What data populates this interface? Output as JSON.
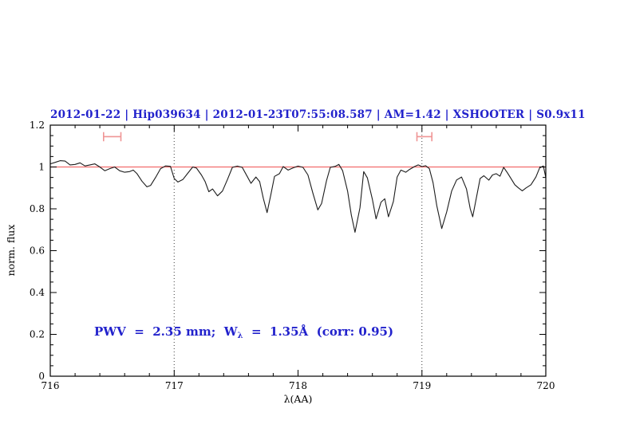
{
  "plot": {
    "title": "2012-01-22 | Hip039634 | 2012-01-23T07:55:08.587 | AM=1.42 | XSHOOTER | S0.9x11",
    "annotation": {
      "prefix": "PWV  =  2.35 mm;  W",
      "sub": "λ",
      "suffix": "  =  1.35Å  (corr: 0.95)"
    },
    "colors": {
      "title_blue": "#2222cc",
      "annotation_blue": "#2222cc",
      "spectrum_black": "#1c1c1c",
      "continuum_red": "#f26b6b",
      "marker_salmon": "#ef9595",
      "guide_gray": "#3a3a3a",
      "frame_black": "#000000",
      "background": "#ffffff"
    }
  },
  "chart_data": {
    "type": "line",
    "title": "2012-01-22 | Hip039634 | 2012-01-23T07:55:08.587 | AM=1.42 | XSHOOTER | S0.9x11",
    "xlabel": "λ(AA)",
    "ylabel": "norm. flux",
    "xlim": [
      716,
      720
    ],
    "ylim": [
      0,
      1.2
    ],
    "grid": false,
    "x_ticks": {
      "major": [
        716,
        717,
        718,
        719,
        720
      ],
      "labels": [
        "716",
        "717",
        "718",
        "719",
        "720"
      ],
      "minor_step": 0.2
    },
    "y_ticks": {
      "major": [
        0,
        0.2,
        0.4,
        0.6,
        0.8,
        1,
        1.2
      ],
      "labels": [
        "0",
        "0.2",
        "0.4",
        "0.6",
        "0.8",
        "1",
        "1.2"
      ],
      "minor_step": 0.05
    },
    "vertical_dotted_guides_x": [
      717,
      719
    ],
    "continuum_line_y": 1.0,
    "range_markers": [
      {
        "x1": 716.43,
        "x2": 716.57,
        "y": 1.145,
        "cap_half": 0.022
      },
      {
        "x1": 718.96,
        "x2": 719.08,
        "y": 1.145,
        "cap_half": 0.022
      }
    ],
    "series": [
      {
        "name": "normalized_spectrum",
        "points": [
          [
            716.0,
            1.015
          ],
          [
            716.04,
            1.022
          ],
          [
            716.08,
            1.03
          ],
          [
            716.12,
            1.028
          ],
          [
            716.16,
            1.01
          ],
          [
            716.2,
            1.012
          ],
          [
            716.24,
            1.02
          ],
          [
            716.28,
            1.005
          ],
          [
            716.32,
            1.01
          ],
          [
            716.36,
            1.015
          ],
          [
            716.4,
            1.0
          ],
          [
            716.44,
            0.982
          ],
          [
            716.48,
            0.992
          ],
          [
            716.52,
            1.0
          ],
          [
            716.56,
            0.982
          ],
          [
            716.6,
            0.975
          ],
          [
            716.64,
            0.978
          ],
          [
            716.67,
            0.985
          ],
          [
            716.7,
            0.968
          ],
          [
            716.74,
            0.932
          ],
          [
            716.78,
            0.905
          ],
          [
            716.81,
            0.912
          ],
          [
            716.85,
            0.95
          ],
          [
            716.89,
            0.992
          ],
          [
            716.93,
            1.005
          ],
          [
            716.97,
            1.003
          ],
          [
            717.0,
            0.945
          ],
          [
            717.03,
            0.928
          ],
          [
            717.07,
            0.94
          ],
          [
            717.11,
            0.97
          ],
          [
            717.15,
            1.0
          ],
          [
            717.18,
            0.995
          ],
          [
            717.22,
            0.962
          ],
          [
            717.25,
            0.93
          ],
          [
            717.28,
            0.882
          ],
          [
            717.31,
            0.895
          ],
          [
            717.35,
            0.862
          ],
          [
            717.39,
            0.885
          ],
          [
            717.43,
            0.94
          ],
          [
            717.47,
            0.998
          ],
          [
            717.51,
            1.004
          ],
          [
            717.55,
            0.998
          ],
          [
            717.59,
            0.955
          ],
          [
            717.62,
            0.922
          ],
          [
            717.66,
            0.952
          ],
          [
            717.69,
            0.93
          ],
          [
            717.72,
            0.85
          ],
          [
            717.75,
            0.782
          ],
          [
            717.78,
            0.865
          ],
          [
            717.81,
            0.955
          ],
          [
            717.85,
            0.968
          ],
          [
            717.88,
            1.002
          ],
          [
            717.92,
            0.985
          ],
          [
            717.96,
            0.996
          ],
          [
            718.0,
            1.004
          ],
          [
            718.04,
            0.998
          ],
          [
            718.08,
            0.962
          ],
          [
            718.12,
            0.875
          ],
          [
            718.16,
            0.795
          ],
          [
            718.19,
            0.825
          ],
          [
            718.23,
            0.935
          ],
          [
            718.26,
            0.998
          ],
          [
            718.3,
            1.003
          ],
          [
            718.33,
            1.012
          ],
          [
            718.36,
            0.982
          ],
          [
            718.4,
            0.885
          ],
          [
            718.43,
            0.77
          ],
          [
            718.46,
            0.688
          ],
          [
            718.5,
            0.805
          ],
          [
            718.53,
            0.978
          ],
          [
            718.56,
            0.948
          ],
          [
            718.6,
            0.845
          ],
          [
            718.63,
            0.752
          ],
          [
            718.67,
            0.832
          ],
          [
            718.7,
            0.848
          ],
          [
            718.73,
            0.762
          ],
          [
            718.77,
            0.835
          ],
          [
            718.8,
            0.952
          ],
          [
            718.83,
            0.985
          ],
          [
            718.87,
            0.975
          ],
          [
            718.9,
            0.988
          ],
          [
            718.94,
            1.002
          ],
          [
            718.97,
            1.01
          ],
          [
            719.0,
            1.002
          ],
          [
            719.03,
            1.006
          ],
          [
            719.06,
            0.992
          ],
          [
            719.09,
            0.925
          ],
          [
            719.12,
            0.815
          ],
          [
            719.16,
            0.706
          ],
          [
            719.2,
            0.785
          ],
          [
            719.24,
            0.885
          ],
          [
            719.28,
            0.938
          ],
          [
            719.32,
            0.952
          ],
          [
            719.36,
            0.895
          ],
          [
            719.39,
            0.8
          ],
          [
            719.41,
            0.762
          ],
          [
            719.44,
            0.855
          ],
          [
            719.47,
            0.945
          ],
          [
            719.5,
            0.958
          ],
          [
            719.54,
            0.937
          ],
          [
            719.57,
            0.962
          ],
          [
            719.6,
            0.968
          ],
          [
            719.63,
            0.956
          ],
          [
            719.66,
            0.998
          ],
          [
            719.69,
            0.972
          ],
          [
            719.72,
            0.944
          ],
          [
            719.75,
            0.915
          ],
          [
            719.78,
            0.9
          ],
          [
            719.81,
            0.886
          ],
          [
            719.84,
            0.9
          ],
          [
            719.88,
            0.915
          ],
          [
            719.92,
            0.952
          ],
          [
            719.95,
            0.995
          ],
          [
            719.98,
            1.005
          ],
          [
            720.0,
            0.95
          ]
        ]
      }
    ],
    "annotation_text": "PWV  =  2.35 mm;  Wλ  =  1.35Å  (corr: 0.95)",
    "legend": null
  }
}
